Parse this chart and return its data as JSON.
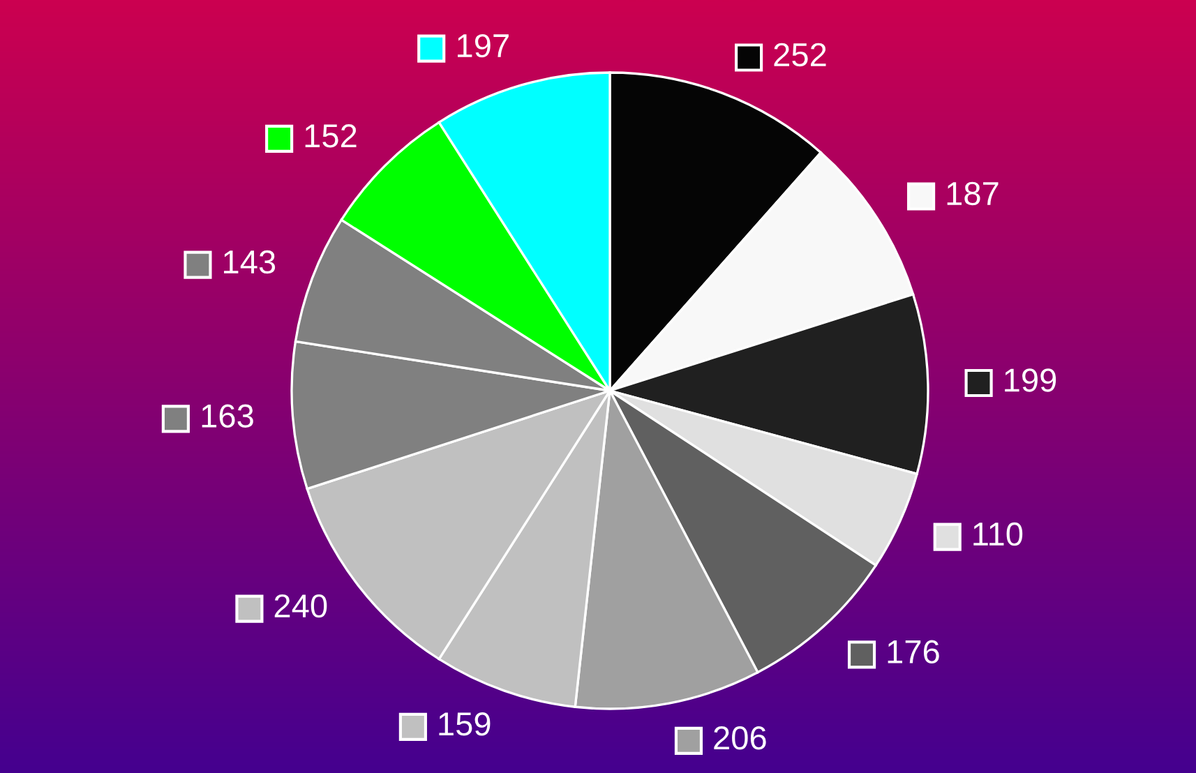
{
  "chart_data": {
    "type": "pie",
    "categories": [
      null,
      null,
      null,
      null,
      null,
      null,
      null,
      null,
      null,
      null,
      null,
      null
    ],
    "values": [
      252,
      187,
      199,
      110,
      176,
      206,
      159,
      240,
      163,
      143,
      152,
      197
    ],
    "colors": [
      "#050505",
      "#f8f8f8",
      "#202020",
      "#e0e0e0",
      "#606060",
      "#a0a0a0",
      "#c0c0c0",
      "#c0c0c0",
      "#808080",
      "#808080",
      "#00ff00",
      "#00ffff"
    ],
    "data_labels": true
  }
}
